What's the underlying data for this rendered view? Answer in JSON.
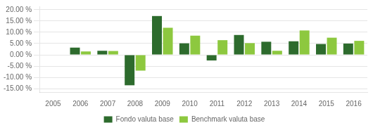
{
  "chart_data": {
    "type": "bar",
    "categories": [
      "2005",
      "2006",
      "2007",
      "2008",
      "2009",
      "2010",
      "2011",
      "2012",
      "2013",
      "2014",
      "2015",
      "2016"
    ],
    "series": [
      {
        "name": "Fondo valuta base",
        "color": "#2d6b2d",
        "values": [
          0.0,
          3.2,
          1.8,
          -13.5,
          17.2,
          5.1,
          -2.5,
          8.8,
          5.8,
          6.0,
          4.8,
          5.0
        ]
      },
      {
        "name": "Benchmark valuta base",
        "color": "#8dc83f",
        "values": [
          0.0,
          1.5,
          1.7,
          -7.0,
          12.0,
          8.5,
          6.5,
          5.2,
          1.8,
          10.8,
          7.6,
          6.2
        ]
      }
    ],
    "ylim": [
      -16.5,
      21.5
    ],
    "yticks": [
      {
        "value": -15,
        "label": "-15.00 %"
      },
      {
        "value": -10,
        "label": "-10.00 %"
      },
      {
        "value": -5,
        "label": "-5.00 %"
      },
      {
        "value": 0,
        "label": "0.00 %"
      },
      {
        "value": 5,
        "label": "5.00 %"
      },
      {
        "value": 10,
        "label": "10.00 %"
      },
      {
        "value": 15,
        "label": "15.00 %"
      },
      {
        "value": 20,
        "label": "20.00 %"
      }
    ],
    "grid": "y",
    "legend": "bottom"
  }
}
